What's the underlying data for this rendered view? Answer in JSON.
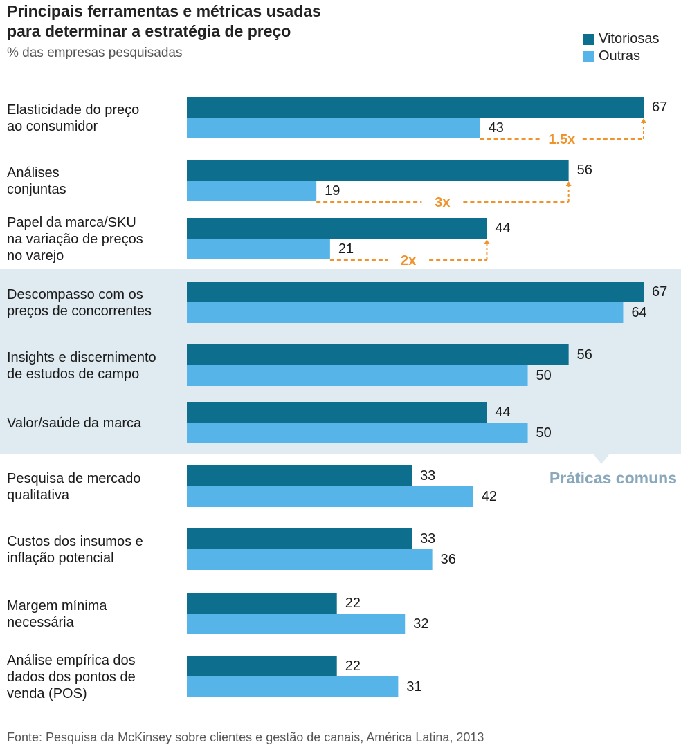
{
  "chart_data": {
    "type": "bar",
    "orientation": "horizontal",
    "title_lines": [
      "Principais ferramentas e métricas usadas",
      "para determinar a estratégia de preço"
    ],
    "subtitle": "% das empresas pesquisadas",
    "source": "Fonte: Pesquisa da McKinsey sobre clientes e gestão de canais, América Latina, 2013",
    "colors": {
      "Vitoriosas": "#0e6e8e",
      "Outras": "#56b4e9",
      "annotation": "#f0932b",
      "highlight": "#dfebf1",
      "callout": "#8aa8bb"
    },
    "categories": [
      [
        "Elasticidade do preço",
        "ao consumidor"
      ],
      [
        "Análises",
        "conjuntas"
      ],
      [
        "Papel da marca/SKU",
        "na variação de preços",
        "no varejo"
      ],
      [
        "Descompasso com os",
        "preços de concorrentes"
      ],
      [
        "Insights e discernimento",
        "de estudos de campo"
      ],
      [
        "Valor/saúde da marca"
      ],
      [
        "Pesquisa de mercado",
        "qualitativa"
      ],
      [
        "Custos dos insumos e",
        "inflação potencial"
      ],
      [
        "Margem mínima",
        "necessária"
      ],
      [
        "Análise empírica dos",
        "dados dos pontos de",
        "venda (POS)"
      ]
    ],
    "series": [
      {
        "name": "Vitoriosas",
        "values": [
          67,
          56,
          44,
          67,
          56,
          44,
          33,
          33,
          22,
          22
        ]
      },
      {
        "name": "Outras",
        "values": [
          43,
          19,
          21,
          64,
          50,
          50,
          42,
          36,
          32,
          31
        ]
      }
    ],
    "xlim": [
      0,
      67
    ],
    "annotations": [
      {
        "category_index": 0,
        "label": "1.5x"
      },
      {
        "category_index": 1,
        "label": "3x"
      },
      {
        "category_index": 2,
        "label": "2x"
      }
    ],
    "highlight": {
      "from_index": 3,
      "to_index": 5,
      "label": "Práticas comuns"
    },
    "legend": "top-right"
  }
}
